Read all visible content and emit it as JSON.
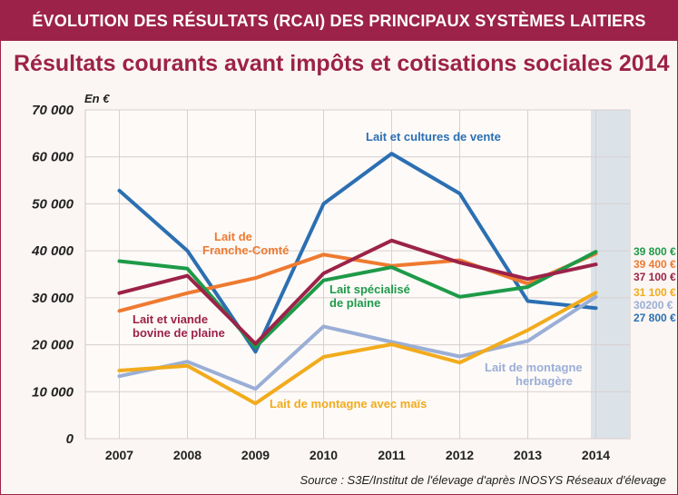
{
  "header": {
    "banner": "ÉVOLUTION DES RÉSULTATS (RCAI) DES PRINCIPAUX SYSTÈMES LAITIERS",
    "banner_color": "#9c2249"
  },
  "chart_data": {
    "type": "line",
    "title": "Résultats courants avant impôts et cotisations sociales 2014",
    "ylabel": "En €",
    "xlabel": "",
    "x": [
      "2007",
      "2008",
      "2009",
      "2010",
      "2011",
      "2012",
      "2013",
      "2014"
    ],
    "ylim": [
      0,
      70000
    ],
    "yticks": [
      0,
      10000,
      20000,
      30000,
      40000,
      50000,
      60000,
      70000
    ],
    "ytick_labels": [
      "0",
      "10 000",
      "20 000",
      "30 000",
      "40 000",
      "50 000",
      "60 000",
      "70 000"
    ],
    "grid": true,
    "highlight_category": "2014",
    "series": [
      {
        "name": "Lait et cultures de vente",
        "color": "#2c6fb2",
        "values": [
          52800,
          40000,
          18500,
          50000,
          60700,
          52200,
          29300,
          27800
        ],
        "end_label": "27 800 €"
      },
      {
        "name": "Lait de Franche-Comté",
        "color": "#ee7a30",
        "values": [
          27200,
          31000,
          34200,
          39200,
          36800,
          38000,
          33000,
          39400
        ],
        "end_label": "39 400 €"
      },
      {
        "name": "Lait spécialisé de plaine",
        "color": "#1e9a48",
        "values": [
          37800,
          36200,
          19500,
          33700,
          36500,
          30200,
          32300,
          39800
        ],
        "end_label": "39 800 €"
      },
      {
        "name": "Lait et viande bovine de plaine",
        "color": "#9c2249",
        "values": [
          31000,
          34700,
          20200,
          35200,
          42200,
          37500,
          34000,
          37100
        ],
        "end_label": "37 100 €"
      },
      {
        "name": "Lait de montagne herbagère",
        "color": "#9aaed6",
        "values": [
          13300,
          16400,
          10600,
          23900,
          20600,
          17500,
          20800,
          30200
        ],
        "end_label": "30200 €"
      },
      {
        "name": "Lait de montagne avec maïs",
        "color": "#f2ab1c",
        "values": [
          14500,
          15500,
          7500,
          17400,
          20100,
          16200,
          23100,
          31100
        ],
        "end_label": "31 100 €"
      }
    ]
  },
  "source": "Source : S3E/Institut de l'élevage d'après INOSYS Réseaux d'élevage"
}
